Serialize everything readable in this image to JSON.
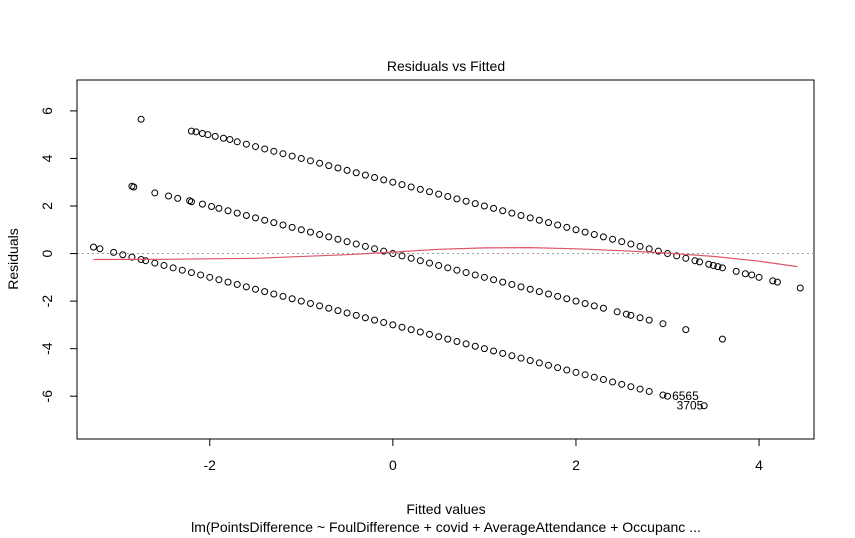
{
  "chart_data": {
    "type": "scatter",
    "title": "Residuals vs Fitted",
    "xlabel": "Fitted values",
    "ylabel": "Residuals",
    "subtitle": "lm(PointsDifference ~ FoulDifference + covid + AverageAttendance + Occupanc ...",
    "xlim": [
      -3.45,
      4.6
    ],
    "ylim": [
      -7.8,
      7.3
    ],
    "x_ticks": [
      -2,
      0,
      2,
      4
    ],
    "y_ticks": [
      -6,
      -4,
      -2,
      0,
      2,
      4,
      6
    ],
    "x_tick_labels": [
      "-2",
      "0",
      "2",
      "4"
    ],
    "y_tick_labels": [
      "-6",
      "-4",
      "-2",
      "0",
      "2",
      "4",
      "6"
    ],
    "grid": false,
    "legend": "none",
    "colors": {
      "points": "#000000",
      "smooth": "#DF536B",
      "zero_line": "#9E9E9E"
    },
    "series": [
      {
        "residual_level": 3,
        "x": [
          -2.75,
          -2.2,
          -2.15,
          -2.08,
          -2.02,
          -1.94,
          -1.85,
          -1.78,
          -1.7,
          -1.6,
          -1.5,
          -1.4,
          -1.3,
          -1.2,
          -1.1,
          -1.0,
          -0.9,
          -0.8,
          -0.7,
          -0.6,
          -0.5,
          -0.4,
          -0.3,
          -0.2,
          -0.1,
          0.0,
          0.1,
          0.2,
          0.3,
          0.4,
          0.5,
          0.6,
          0.7,
          0.8,
          0.9,
          1.0,
          1.1,
          1.2,
          1.3,
          1.4,
          1.5,
          1.6,
          1.7,
          1.8,
          1.9,
          2.0,
          2.1,
          2.2,
          2.3,
          2.4,
          2.5,
          2.6,
          2.7,
          2.8,
          2.9,
          3.0,
          3.1,
          3.2,
          3.3,
          3.35,
          3.45,
          3.5,
          3.55,
          3.6,
          3.75,
          3.85,
          3.92,
          4.0,
          4.15,
          4.2,
          4.45
        ],
        "y": [
          5.65,
          5.15,
          5.12,
          5.05,
          5.0,
          4.93,
          4.85,
          4.8,
          4.7,
          4.6,
          4.5,
          4.4,
          4.3,
          4.2,
          4.1,
          4.0,
          3.9,
          3.8,
          3.7,
          3.6,
          3.5,
          3.4,
          3.3,
          3.2,
          3.1,
          3.0,
          2.9,
          2.8,
          2.7,
          2.6,
          2.5,
          2.4,
          2.3,
          2.2,
          2.1,
          2.0,
          1.9,
          1.8,
          1.7,
          1.6,
          1.5,
          1.4,
          1.3,
          1.2,
          1.1,
          1.0,
          0.9,
          0.8,
          0.7,
          0.6,
          0.5,
          0.4,
          0.3,
          0.2,
          0.1,
          0.0,
          -0.1,
          -0.2,
          -0.3,
          -0.35,
          -0.45,
          -0.5,
          -0.55,
          -0.6,
          -0.75,
          -0.85,
          -0.9,
          -1.0,
          -1.15,
          -1.2,
          -1.45
        ]
      },
      {
        "residual_level": 0,
        "x": [
          -2.85,
          -2.83,
          -2.6,
          -2.45,
          -2.35,
          -2.22,
          -2.2,
          -2.08,
          -1.98,
          -1.9,
          -1.8,
          -1.7,
          -1.6,
          -1.5,
          -1.4,
          -1.3,
          -1.2,
          -1.1,
          -1.0,
          -0.9,
          -0.8,
          -0.7,
          -0.6,
          -0.5,
          -0.4,
          -0.3,
          -0.2,
          -0.1,
          0.0,
          0.1,
          0.2,
          0.3,
          0.4,
          0.5,
          0.6,
          0.7,
          0.8,
          0.9,
          1.0,
          1.1,
          1.2,
          1.3,
          1.4,
          1.5,
          1.6,
          1.7,
          1.8,
          1.9,
          2.0,
          2.1,
          2.2,
          2.3,
          2.45,
          2.55,
          2.6,
          2.7,
          2.8,
          2.95,
          3.2,
          3.6
        ],
        "y": [
          2.83,
          2.8,
          2.55,
          2.42,
          2.32,
          2.22,
          2.18,
          2.08,
          1.98,
          1.9,
          1.8,
          1.7,
          1.6,
          1.5,
          1.4,
          1.3,
          1.2,
          1.1,
          1.0,
          0.9,
          0.8,
          0.7,
          0.6,
          0.5,
          0.4,
          0.3,
          0.2,
          0.1,
          0.0,
          -0.1,
          -0.2,
          -0.3,
          -0.4,
          -0.5,
          -0.6,
          -0.7,
          -0.8,
          -0.9,
          -1.0,
          -1.1,
          -1.2,
          -1.3,
          -1.4,
          -1.5,
          -1.6,
          -1.7,
          -1.8,
          -1.9,
          -2.0,
          -2.1,
          -2.2,
          -2.3,
          -2.45,
          -2.55,
          -2.6,
          -2.7,
          -2.8,
          -2.95,
          -3.2,
          -3.6
        ]
      },
      {
        "residual_level": -3,
        "x": [
          -3.27,
          -3.2,
          -3.05,
          -2.95,
          -2.85,
          -2.75,
          -2.7,
          -2.6,
          -2.5,
          -2.4,
          -2.3,
          -2.2,
          -2.1,
          -2.0,
          -1.9,
          -1.8,
          -1.7,
          -1.6,
          -1.5,
          -1.4,
          -1.3,
          -1.2,
          -1.1,
          -1.0,
          -0.9,
          -0.8,
          -0.7,
          -0.6,
          -0.5,
          -0.4,
          -0.3,
          -0.2,
          -0.1,
          0.0,
          0.1,
          0.2,
          0.3,
          0.4,
          0.5,
          0.6,
          0.7,
          0.8,
          0.9,
          1.0,
          1.1,
          1.2,
          1.3,
          1.4,
          1.5,
          1.6,
          1.7,
          1.8,
          1.9,
          2.0,
          2.1,
          2.2,
          2.3,
          2.4,
          2.5,
          2.6,
          2.7,
          2.8,
          2.95,
          3.0,
          3.4
        ],
        "y": [
          0.27,
          0.2,
          0.05,
          -0.05,
          -0.15,
          -0.25,
          -0.3,
          -0.4,
          -0.5,
          -0.6,
          -0.7,
          -0.8,
          -0.9,
          -1.0,
          -1.1,
          -1.2,
          -1.3,
          -1.4,
          -1.5,
          -1.6,
          -1.7,
          -1.8,
          -1.9,
          -2.0,
          -2.1,
          -2.2,
          -2.3,
          -2.4,
          -2.5,
          -2.6,
          -2.7,
          -2.8,
          -2.9,
          -3.0,
          -3.1,
          -3.2,
          -3.3,
          -3.4,
          -3.5,
          -3.6,
          -3.7,
          -3.8,
          -3.9,
          -4.0,
          -4.1,
          -4.2,
          -4.3,
          -4.4,
          -4.5,
          -4.6,
          -4.7,
          -4.8,
          -4.9,
          -5.0,
          -5.1,
          -5.2,
          -5.3,
          -5.4,
          -5.5,
          -5.6,
          -5.7,
          -5.8,
          -5.95,
          -6.0,
          -6.4
        ]
      }
    ],
    "smooth_line": {
      "x": [
        -3.27,
        -2.5,
        -1.5,
        -0.5,
        0.0,
        0.5,
        1.0,
        1.5,
        2.0,
        2.5,
        3.0,
        3.5,
        4.0,
        4.42
      ],
      "y": [
        -0.25,
        -0.24,
        -0.2,
        -0.05,
        0.06,
        0.18,
        0.24,
        0.25,
        0.2,
        0.12,
        0.02,
        -0.12,
        -0.32,
        -0.55
      ]
    },
    "zero_line": 0,
    "point_labels": [
      {
        "text": "6565",
        "x": 3.05,
        "y": -6.15
      },
      {
        "text": "3705",
        "x": 3.1,
        "y": -6.55
      }
    ]
  }
}
